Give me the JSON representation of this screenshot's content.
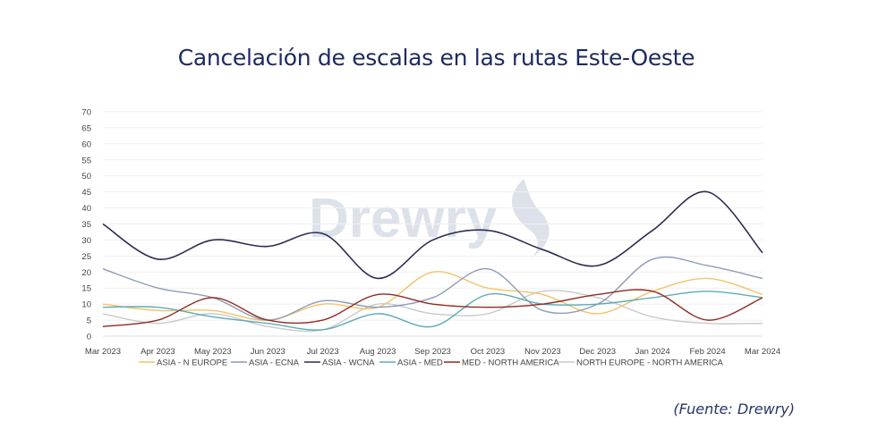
{
  "title": "Cancelación de escalas en las rutas Este-Oeste",
  "source": "(Fuente: Drewry)",
  "watermark": "Drewry",
  "chart_data": {
    "type": "line",
    "title": "Cancelación de escalas en las rutas Este-Oeste",
    "xlabel": "",
    "ylabel": "",
    "ylim": [
      0,
      70
    ],
    "yticks": [
      0,
      5,
      10,
      15,
      20,
      25,
      30,
      35,
      40,
      45,
      50,
      55,
      60,
      65,
      70
    ],
    "grid": true,
    "legend_position": "bottom",
    "categories": [
      "Mar 2023",
      "Apr 2023",
      "May 2023",
      "Jun 2023",
      "Jul 2023",
      "Aug 2023",
      "Sep 2023",
      "Oct 2023",
      "Nov 2023",
      "Dec 2023",
      "Jan 2024",
      "Feb 2024",
      "Mar 2024"
    ],
    "series": [
      {
        "name": "ASIA - N EUROPE",
        "color": "#f0c468",
        "values": [
          10,
          8,
          8,
          5,
          10,
          9,
          20,
          15,
          13,
          7,
          14,
          18,
          13
        ]
      },
      {
        "name": "ASIA - ECNA",
        "color": "#8d9bb5",
        "values": [
          21,
          15,
          12,
          5,
          11,
          9,
          12,
          21,
          8,
          10,
          24,
          22,
          18
        ]
      },
      {
        "name": "ASIA - WCNA",
        "color": "#2c2d52",
        "values": [
          35,
          24,
          30,
          28,
          32,
          18,
          30,
          33,
          27,
          22,
          33,
          45,
          26
        ]
      },
      {
        "name": "ASIA - MED",
        "color": "#5fabb5",
        "values": [
          9,
          9,
          6,
          4,
          2,
          7,
          3,
          13,
          10,
          10,
          12,
          14,
          12
        ]
      },
      {
        "name": "MED - NORTH AMERICA",
        "color": "#8e2b22",
        "values": [
          3,
          5,
          12,
          5,
          5,
          13,
          10,
          9,
          10,
          13,
          14,
          5,
          12
        ]
      },
      {
        "name": "NORTH EUROPE - NORTH AMERICA",
        "color": "#c9c9c9",
        "values": [
          7,
          4,
          7,
          3,
          2,
          10,
          7,
          7,
          14,
          12,
          6,
          4,
          4
        ]
      }
    ]
  }
}
